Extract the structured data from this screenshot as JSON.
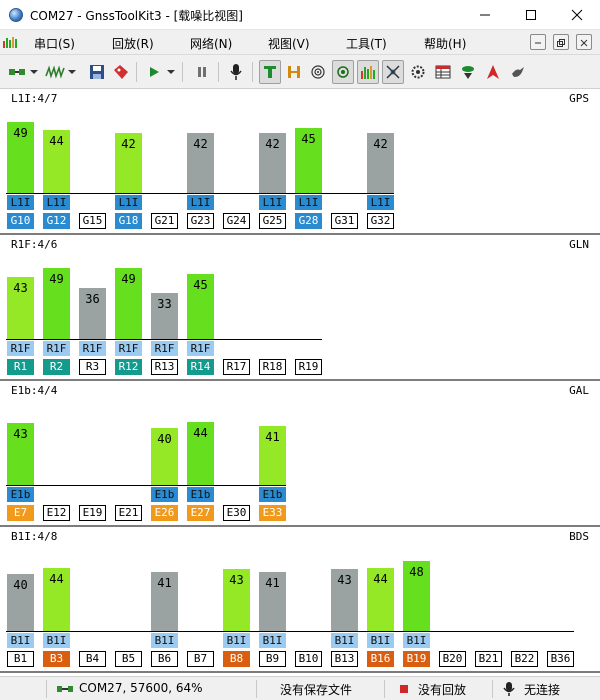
{
  "window": {
    "title": "COM27 - GnssToolKit3 - [载噪比视图]"
  },
  "menu": {
    "items": [
      "串口(S)",
      "回放(R)",
      "网络(N)",
      "视图(V)",
      "工具(T)",
      "帮助(H)"
    ]
  },
  "toolbar": {
    "icons": [
      "connect-icon",
      "dropdown-icon",
      "signal-icon",
      "dropdown-icon",
      "save-icon",
      "tag-icon",
      "play-icon",
      "dropdown-icon",
      "pause-icon",
      "microphone-icon",
      "text-view-icon",
      "h-view-icon",
      "target-icon",
      "locate-icon",
      "snr-bars-icon",
      "satellite-icon",
      "settings-icon",
      "table-icon",
      "rtk-icon",
      "direction-icon",
      "bird-icon"
    ]
  },
  "colors": {
    "snr_high": "#66e01e",
    "snr_mid": "#94e825",
    "snr_unused": "#9aa2a2",
    "prn_gps_bds_sig": "#2a8bd1",
    "prn_glonass": "#139b8e",
    "prn_galileo": "#f0991b",
    "prn_bds": "#d95e10",
    "sig_light": "#9bcbf1"
  },
  "panels": [
    {
      "id": "gps",
      "label": "L1I:4/7",
      "name": "GPS",
      "baseline_end_slot": 11,
      "sats": [
        {
          "prn": "G10",
          "snr": 49,
          "sig": "L1I",
          "used": true,
          "color": "#66e01e"
        },
        {
          "prn": "G12",
          "snr": 44,
          "sig": "L1I",
          "used": true,
          "color": "#94e825"
        },
        {
          "prn": "G15"
        },
        {
          "prn": "G18",
          "snr": 42,
          "sig": "L1I",
          "used": true,
          "color": "#94e825"
        },
        {
          "prn": "G21"
        },
        {
          "prn": "G23",
          "snr": 42,
          "sig": "L1I",
          "used": false,
          "color": "#9aa2a2"
        },
        {
          "prn": "G24"
        },
        {
          "prn": "G25",
          "snr": 42,
          "sig": "L1I",
          "used": false,
          "color": "#9aa2a2"
        },
        {
          "prn": "G28",
          "snr": 45,
          "sig": "L1I",
          "used": true,
          "color": "#66e01e"
        },
        {
          "prn": "G31"
        },
        {
          "prn": "G32",
          "snr": 42,
          "sig": "L1I",
          "used": false,
          "color": "#9aa2a2"
        }
      ]
    },
    {
      "id": "glonass",
      "label": "R1F:4/6",
      "name": "GLN",
      "baseline_end_slot": 9,
      "sats": [
        {
          "prn": "R1",
          "snr": 43,
          "sig": "R1F",
          "used": true,
          "color": "#94e825"
        },
        {
          "prn": "R2",
          "snr": 49,
          "sig": "R1F",
          "used": true,
          "color": "#66e01e"
        },
        {
          "prn": "R3",
          "snr": 36,
          "sig": "R1F",
          "used": false,
          "color": "#9aa2a2"
        },
        {
          "prn": "R12",
          "snr": 49,
          "sig": "R1F",
          "used": true,
          "color": "#66e01e"
        },
        {
          "prn": "R13",
          "snr": 33,
          "sig": "R1F",
          "used": false,
          "color": "#9aa2a2"
        },
        {
          "prn": "R14",
          "snr": 45,
          "sig": "R1F",
          "used": true,
          "color": "#66e01e"
        },
        {
          "prn": "R17"
        },
        {
          "prn": "R18"
        },
        {
          "prn": "R19"
        }
      ]
    },
    {
      "id": "galileo",
      "label": "E1b:4/4",
      "name": "GAL",
      "baseline_end_slot": 8,
      "sats": [
        {
          "prn": "E7",
          "snr": 43,
          "sig": "E1b",
          "used": true,
          "color": "#66e01e"
        },
        {
          "prn": "E12"
        },
        {
          "prn": "E19"
        },
        {
          "prn": "E21"
        },
        {
          "prn": "E26",
          "snr": 40,
          "sig": "E1b",
          "used": true,
          "color": "#94e825"
        },
        {
          "prn": "E27",
          "snr": 44,
          "sig": "E1b",
          "used": true,
          "color": "#66e01e"
        },
        {
          "prn": "E30"
        },
        {
          "prn": "E33",
          "snr": 41,
          "sig": "E1b",
          "used": true,
          "color": "#94e825"
        }
      ]
    },
    {
      "id": "bds",
      "label": "B1I:4/8",
      "name": "BDS",
      "baseline_end_slot": 16,
      "sats": [
        {
          "prn": "B1",
          "snr": 40,
          "sig": "B1I",
          "used": false,
          "color": "#9aa2a2"
        },
        {
          "prn": "B3",
          "snr": 44,
          "sig": "B1I",
          "used": true,
          "color": "#94e825"
        },
        {
          "prn": "B4"
        },
        {
          "prn": "B5"
        },
        {
          "prn": "B6",
          "snr": 41,
          "sig": "B1I",
          "used": false,
          "color": "#9aa2a2"
        },
        {
          "prn": "B7"
        },
        {
          "prn": "B8",
          "snr": 43,
          "sig": "B1I",
          "used": true,
          "color": "#94e825"
        },
        {
          "prn": "B9",
          "snr": 41,
          "sig": "B1I",
          "used": false,
          "color": "#9aa2a2"
        },
        {
          "prn": "B10"
        },
        {
          "prn": "B13",
          "snr": 43,
          "sig": "B1I",
          "used": false,
          "color": "#9aa2a2"
        },
        {
          "prn": "B16",
          "snr": 44,
          "sig": "B1I",
          "used": true,
          "color": "#94e825"
        },
        {
          "prn": "B19",
          "snr": 48,
          "sig": "B1I",
          "used": true,
          "color": "#66e01e"
        },
        {
          "prn": "B20"
        },
        {
          "prn": "B21"
        },
        {
          "prn": "B22"
        },
        {
          "prn": "B36"
        }
      ]
    }
  ],
  "status": {
    "connection": "COM27, 57600, 64%",
    "save": "没有保存文件",
    "playback": "没有回放",
    "network": "无连接"
  }
}
